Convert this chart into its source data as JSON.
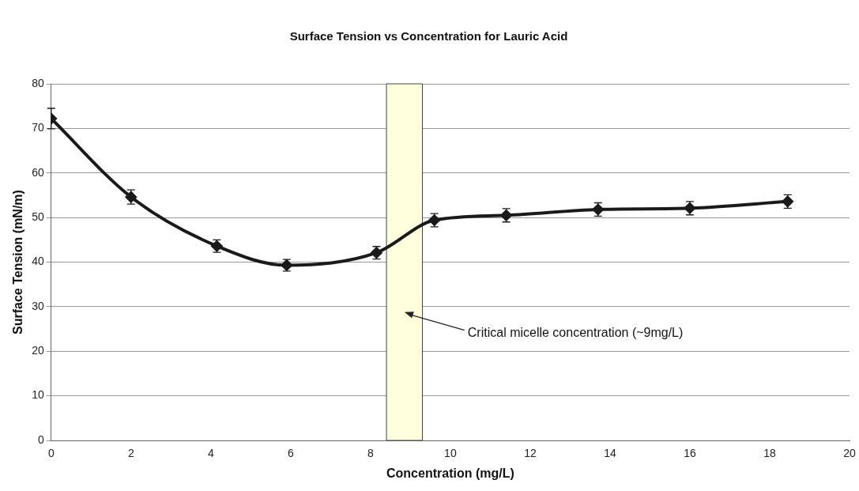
{
  "chart_data": {
    "type": "line",
    "title": "Surface Tension vs Concentration for Lauric Acid",
    "xlabel": "Concentration (mg/L)",
    "ylabel": "Surface Tension (mN/m)",
    "series": [
      {
        "color": "#1a1a1a",
        "x": [
          0,
          2,
          4.15,
          5.9,
          8.15,
          9.6,
          11.4,
          13.7,
          16,
          18.45
        ],
        "values": [
          72.2,
          54.6,
          43.6,
          39.3,
          42.1,
          49.4,
          50.5,
          51.8,
          52.1,
          53.6
        ],
        "errors": [
          2.3,
          1.6,
          1.4,
          1.3,
          1.4,
          1.5,
          1.5,
          1.5,
          1.5,
          1.5
        ]
      }
    ],
    "xlim": [
      0,
      20
    ],
    "xticks": [
      0,
      2,
      4,
      6,
      8,
      10,
      12,
      14,
      16,
      18,
      20
    ],
    "ylim": [
      0,
      80
    ],
    "yticks": [
      0,
      10,
      20,
      30,
      40,
      50,
      60,
      70,
      80
    ],
    "bands": [
      {
        "axis": "x",
        "from": 8.4,
        "to": 9.3,
        "color": "#ffffdd"
      }
    ],
    "annotations": [
      "Critical micelle concentration (~9mg/L)"
    ],
    "grid": "y",
    "legend": false,
    "marker": "diamond",
    "line_style": "solid"
  }
}
